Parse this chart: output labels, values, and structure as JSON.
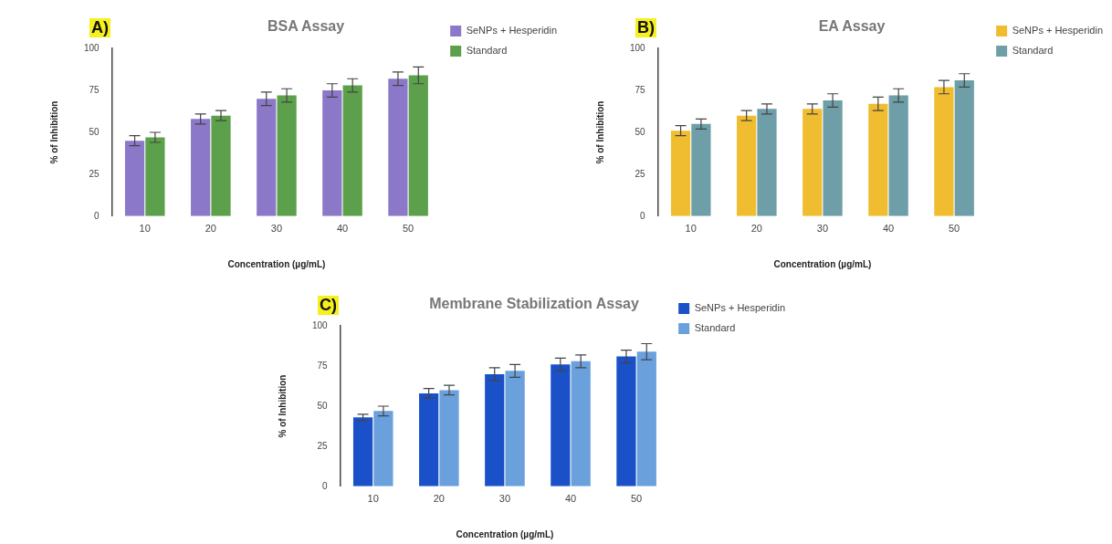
{
  "chart_data": [
    {
      "type": "bar",
      "title": "BSA Assay",
      "annotations": [
        "A)"
      ],
      "xlabel": "Concentration (µg/mL)",
      "ylabel": "% of Inhibition",
      "categories": [
        "10",
        "20",
        "30",
        "40",
        "50"
      ],
      "ylim": [
        0,
        100
      ],
      "yticks": [
        0,
        25,
        50,
        75,
        100
      ],
      "grid": false,
      "legend": "right",
      "series": [
        {
          "name": "SeNPs + Hesperidin",
          "color": "#8c78c8",
          "values": [
            45,
            58,
            70,
            75,
            82
          ],
          "errors": [
            3,
            3,
            4,
            4,
            4
          ]
        },
        {
          "name": "Standard",
          "color": "#5ca04c",
          "values": [
            47,
            60,
            72,
            78,
            84
          ],
          "errors": [
            3,
            3,
            4,
            4,
            5
          ]
        }
      ]
    },
    {
      "type": "bar",
      "title": "EA Assay",
      "annotations": [
        "B)"
      ],
      "xlabel": "Concentration (µg/mL)",
      "ylabel": "% of Inhibition",
      "categories": [
        "10",
        "20",
        "30",
        "40",
        "50"
      ],
      "ylim": [
        0,
        100
      ],
      "yticks": [
        0,
        25,
        50,
        75,
        100
      ],
      "grid": false,
      "legend": "right",
      "series": [
        {
          "name": "SeNPs + Hesperidin",
          "color": "#f0bc30",
          "values": [
            51,
            60,
            64,
            67,
            77
          ],
          "errors": [
            3,
            3,
            3,
            4,
            4
          ]
        },
        {
          "name": "Standard",
          "color": "#6e9ea8",
          "values": [
            55,
            64,
            69,
            72,
            81
          ],
          "errors": [
            3,
            3,
            4,
            4,
            4
          ]
        }
      ]
    },
    {
      "type": "bar",
      "title": "Membrane Stabilization Assay",
      "annotations": [
        "C)"
      ],
      "xlabel": "Concentration (µg/mL)",
      "ylabel": "% of Inhibition",
      "categories": [
        "10",
        "20",
        "30",
        "40",
        "50"
      ],
      "ylim": [
        0,
        100
      ],
      "yticks": [
        0,
        25,
        50,
        75,
        100
      ],
      "grid": false,
      "legend": "top right",
      "series": [
        {
          "name": "SeNPs + Hesperidin",
          "color": "#1a50c8",
          "values": [
            43,
            58,
            70,
            76,
            81
          ],
          "errors": [
            2,
            3,
            4,
            4,
            4
          ]
        },
        {
          "name": "Standard",
          "color": "#6aa0dc",
          "values": [
            47,
            60,
            72,
            78,
            84
          ],
          "errors": [
            3,
            3,
            4,
            4,
            5
          ]
        }
      ]
    }
  ]
}
